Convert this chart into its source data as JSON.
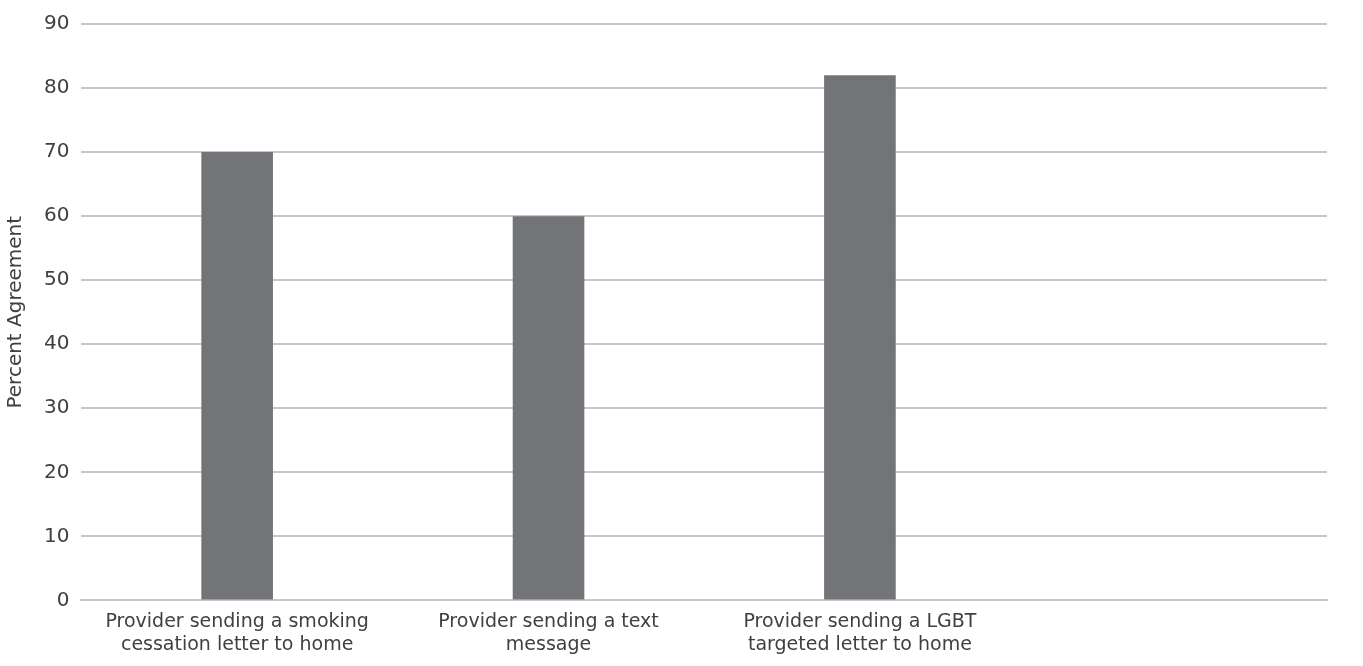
{
  "chart_data": {
    "type": "bar",
    "ylabel": "Percent Agreement",
    "categories": [
      "Provider sending a smoking cessation letter to home",
      "Provider sending a text message",
      "Provider sending a LGBT targeted letter to home",
      null
    ],
    "values": [
      70,
      60,
      82,
      null
    ],
    "color": "#737478",
    "ylim": [
      0,
      90
    ],
    "yticks": [
      0,
      10,
      20,
      30,
      40,
      50,
      60,
      70,
      80,
      90
    ],
    "grid": "y",
    "legend": false
  }
}
